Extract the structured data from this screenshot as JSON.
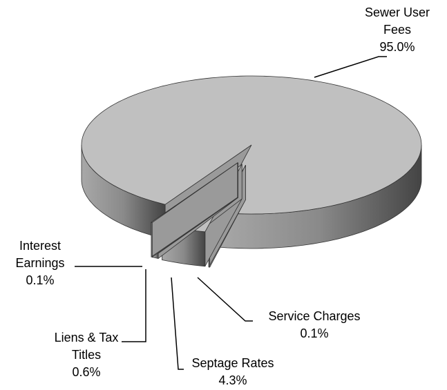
{
  "chart_data": {
    "type": "pie3d",
    "categories": [
      "Sewer User Fees",
      "Service Charges",
      "Septage Rates",
      "Liens & Tax Titles",
      "Interest Earnings"
    ],
    "values": [
      95.0,
      0.1,
      4.3,
      0.6,
      0.1
    ],
    "value_labels": [
      "95.0%",
      "0.1%",
      "4.3%",
      "0.6%",
      "0.1%"
    ],
    "color": "#c0c0c0"
  }
}
